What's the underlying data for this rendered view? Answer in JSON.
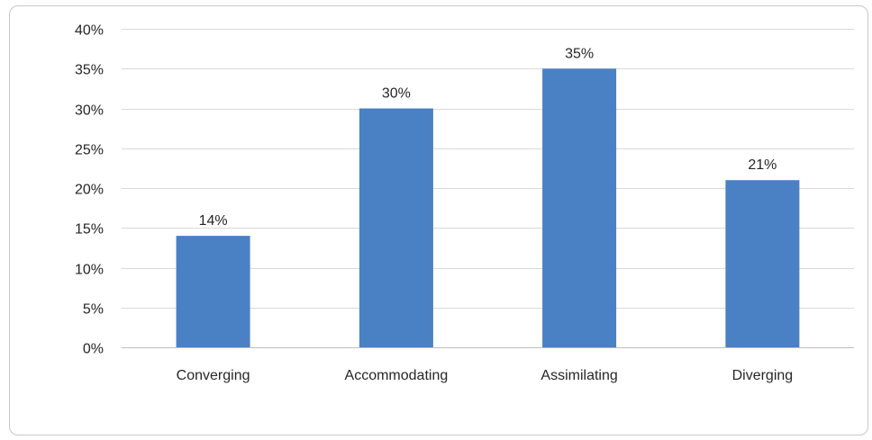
{
  "chart_data": {
    "type": "bar",
    "title": "",
    "xlabel": "",
    "ylabel": "",
    "categories": [
      "Converging",
      "Accommodating",
      "Assimilating",
      "Diverging"
    ],
    "values": [
      14,
      30,
      35,
      21
    ],
    "value_labels": [
      "14%",
      "30%",
      "35%",
      "21%"
    ],
    "ylim": [
      0,
      40
    ],
    "yticks": [
      0,
      5,
      10,
      15,
      20,
      25,
      30,
      35,
      40
    ],
    "ytick_labels": [
      "0%",
      "5%",
      "10%",
      "15%",
      "20%",
      "25%",
      "30%",
      "35%",
      "40%"
    ],
    "grid": true,
    "legend": "none",
    "bar_color": "#4a80c4",
    "gridline_color": "#d9d9d9",
    "axis_color": "#bfbfbf"
  }
}
